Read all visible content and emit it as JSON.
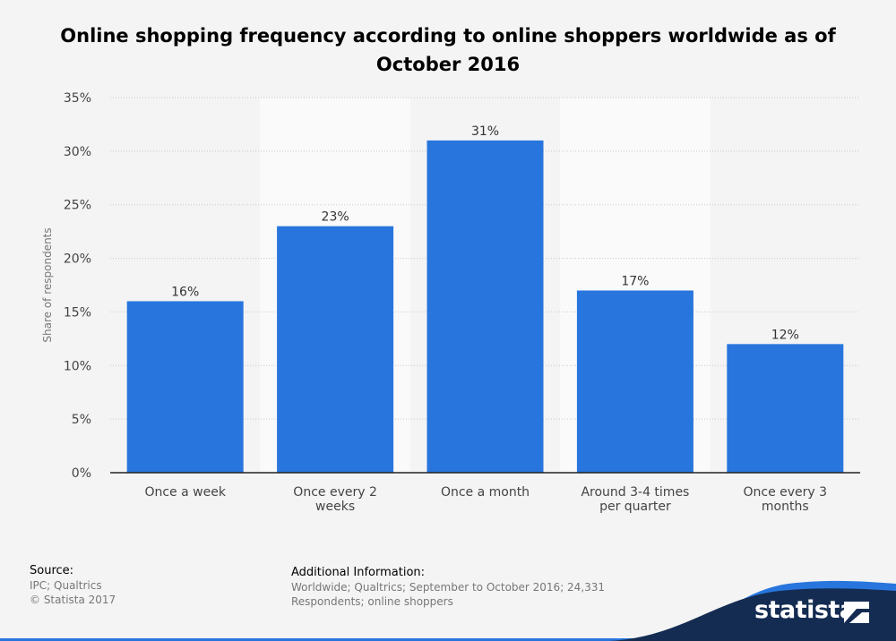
{
  "chart_data": {
    "type": "bar",
    "title": "Online shopping frequency according to online shoppers worldwide as of October 2016",
    "ylabel": "Share of respondents",
    "xlabel": "",
    "categories": [
      "Once a week",
      "Once every 2 weeks",
      "Once a month",
      "Around 3-4 times per quarter",
      "Once every 3 months"
    ],
    "category_lines": [
      [
        "Once a week"
      ],
      [
        "Once every 2",
        "weeks"
      ],
      [
        "Once a month"
      ],
      [
        "Around 3-4 times",
        "per quarter"
      ],
      [
        "Once every 3",
        "months"
      ]
    ],
    "values": [
      16,
      23,
      31,
      17,
      12
    ],
    "value_labels": [
      "16%",
      "23%",
      "31%",
      "17%",
      "12%"
    ],
    "yticks": [
      0,
      5,
      10,
      15,
      20,
      25,
      30,
      35
    ],
    "ytick_labels": [
      "0%",
      "5%",
      "10%",
      "15%",
      "20%",
      "25%",
      "30%",
      "35%"
    ],
    "ylim": [
      0,
      35
    ],
    "grid": true,
    "bar_color": "#2876dd"
  },
  "footer": {
    "source_heading": "Source:",
    "source_line1": "IPC; Qualtrics",
    "source_line2": "© Statista 2017",
    "additional_heading": "Additional Information:",
    "additional_line1": "Worldwide; Qualtrics; September to October 2016; 24,331",
    "additional_line2": "Respondents; online shoppers"
  },
  "brand": {
    "logo_text": "statista",
    "color": "#1a4b8c"
  }
}
